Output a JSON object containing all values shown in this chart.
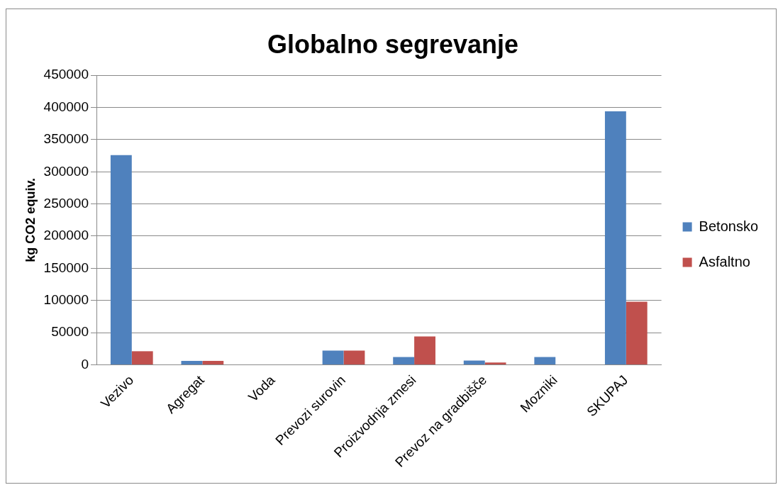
{
  "chart_data": {
    "type": "bar",
    "title": "Globalno segrevanje",
    "ylabel": "kg CO2 equiv.",
    "categories": [
      "Vezivo",
      "Agregat",
      "Voda",
      "Prevozi surovin",
      "Proizvodnja zmesi",
      "Prevoz na gradbišče",
      "Mozniki",
      "SKUPAJ"
    ],
    "series": [
      {
        "name": "Betonsko",
        "color": "#4f81bd",
        "values": [
          326000,
          6000,
          0,
          22000,
          12000,
          6500,
          12000,
          394000
        ]
      },
      {
        "name": "Asfaltno",
        "color": "#c0504d",
        "values": [
          21000,
          6000,
          0,
          22000,
          44000,
          3500,
          0,
          98000
        ]
      }
    ],
    "ylim": [
      0,
      450000
    ],
    "yticks": [
      0,
      50000,
      100000,
      150000,
      200000,
      250000,
      300000,
      350000,
      400000,
      450000
    ],
    "grid": "y",
    "legend": "right"
  }
}
